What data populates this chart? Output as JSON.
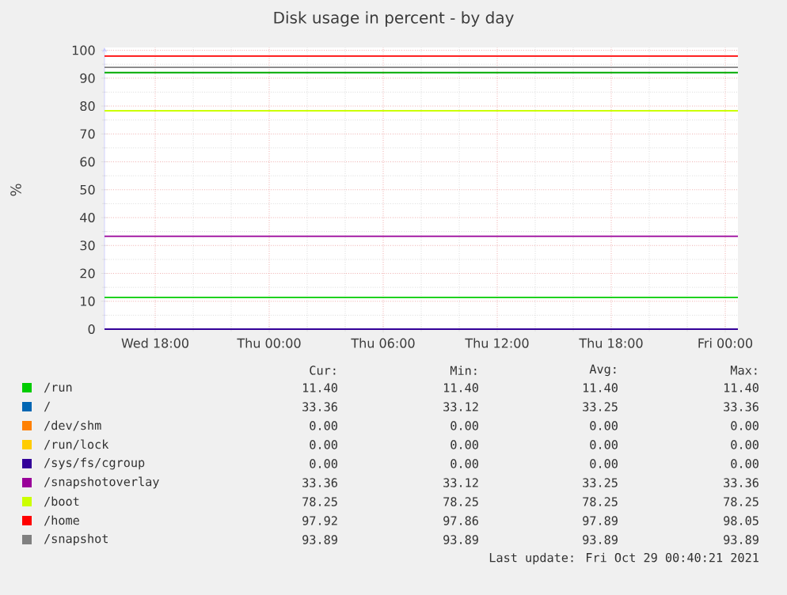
{
  "chart_data": {
    "type": "line",
    "title": "Disk usage in percent - by day",
    "ylabel": "%",
    "xlim": [
      "2021-10-27T15:20",
      "2021-10-29T00:40"
    ],
    "ylim": [
      0,
      101
    ],
    "xticks": [
      {
        "value": "2021-10-27T18:00",
        "label": "Wed 18:00"
      },
      {
        "value": "2021-10-28T00:00",
        "label": "Thu 00:00"
      },
      {
        "value": "2021-10-28T06:00",
        "label": "Thu 06:00"
      },
      {
        "value": "2021-10-28T12:00",
        "label": "Thu 12:00"
      },
      {
        "value": "2021-10-28T18:00",
        "label": "Thu 18:00"
      },
      {
        "value": "2021-10-29T00:00",
        "label": "Fri 00:00"
      }
    ],
    "yticks": [
      0,
      10,
      20,
      30,
      40,
      50,
      60,
      70,
      80,
      90,
      100
    ],
    "grid": true,
    "legend": "bottom",
    "marker": "none",
    "line_style": "solid",
    "x": [
      "2021-10-27T15:20",
      "2021-10-29T00:40"
    ],
    "series": [
      {
        "name": "/run",
        "color": "#00cc00",
        "values": [
          11.4,
          11.4
        ]
      },
      {
        "name": "/",
        "color": "#0066b3",
        "values": [
          null,
          null
        ]
      },
      {
        "name": "/dev/shm",
        "color": "#ff8000",
        "values": [
          null,
          null
        ]
      },
      {
        "name": "/run/lock",
        "color": "#ffcc00",
        "values": [
          null,
          null
        ]
      },
      {
        "name": "/sys/fs/cgroup",
        "color": "#330099",
        "values": [
          0,
          0
        ]
      },
      {
        "name": "/snapshotoverlay",
        "color": "#990099",
        "values": [
          33.3,
          33.3
        ]
      },
      {
        "name": "/boot",
        "color": "#ccff00",
        "values": [
          78.3,
          78.3
        ]
      },
      {
        "name": "/home",
        "color": "#ff0000",
        "values": [
          97.9,
          97.9
        ]
      },
      {
        "name": "/snapshot",
        "color": "#808080",
        "values": [
          93.9,
          93.9
        ]
      }
    ],
    "ref_lines": [
      {
        "axis": "y",
        "value": 92,
        "color": "#00aa00"
      }
    ],
    "annotations": [
      "Cur:",
      "Min:",
      "Avg:",
      "Max:",
      "11.40",
      "11.40",
      "11.40",
      "11.40",
      "33.36",
      "33.12",
      "33.25",
      "33.36",
      "0.00",
      "0.00",
      "0.00",
      "0.00",
      "0.00",
      "0.00",
      "0.00",
      "0.00",
      "0.00",
      "0.00",
      "0.00",
      "0.00",
      "33.36",
      "33.12",
      "33.25",
      "33.36",
      "78.25",
      "78.25",
      "78.25",
      "78.25",
      "97.92",
      "97.86",
      "97.89",
      "98.05",
      "93.89",
      "93.89",
      "93.89",
      "93.89",
      "Last update: Fri Oct 29 00:40:21 2021"
    ]
  }
}
